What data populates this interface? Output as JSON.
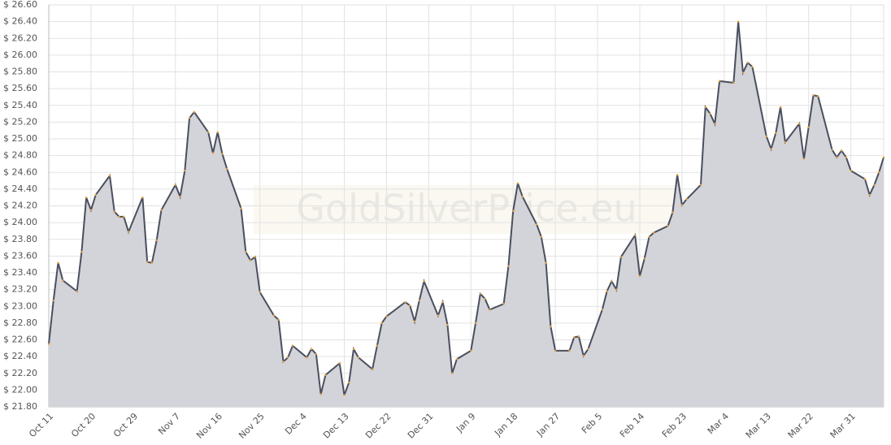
{
  "chart_data": {
    "type": "area",
    "watermark": "GoldSilverPrice.eu",
    "x": [
      "Oct 11",
      "Oct 12",
      "Oct 13",
      "Oct 14",
      "Oct 17",
      "Oct 18",
      "Oct 19",
      "Oct 20",
      "Oct 21",
      "Oct 24",
      "Oct 25",
      "Oct 26",
      "Oct 27",
      "Oct 28",
      "Oct 31",
      "Nov 1",
      "Nov 2",
      "Nov 3",
      "Nov 4",
      "Nov 7",
      "Nov 8",
      "Nov 9",
      "Nov 10",
      "Nov 11",
      "Nov 14",
      "Nov 15",
      "Nov 16",
      "Nov 17",
      "Nov 18",
      "Nov 21",
      "Nov 22",
      "Nov 23",
      "Nov 24",
      "Nov 25",
      "Nov 28",
      "Nov 29",
      "Nov 30",
      "Dec 1",
      "Dec 2",
      "Dec 5",
      "Dec 6",
      "Dec 7",
      "Dec 8",
      "Dec 9",
      "Dec 12",
      "Dec 13",
      "Dec 14",
      "Dec 15",
      "Dec 16",
      "Dec 19",
      "Dec 20",
      "Dec 21",
      "Dec 22",
      "Dec 26",
      "Dec 27",
      "Dec 28",
      "Dec 29",
      "Dec 30",
      "Jan 2",
      "Jan 3",
      "Jan 4",
      "Jan 5",
      "Jan 6",
      "Jan 9",
      "Jan 10",
      "Jan 11",
      "Jan 12",
      "Jan 13",
      "Jan 16",
      "Jan 17",
      "Jan 18",
      "Jan 19",
      "Jan 20",
      "Jan 23",
      "Jan 24",
      "Jan 25",
      "Jan 26",
      "Jan 27",
      "Jan 30",
      "Jan 31",
      "Feb 1",
      "Feb 2",
      "Feb 3",
      "Feb 6",
      "Feb 7",
      "Feb 8",
      "Feb 9",
      "Feb 10",
      "Feb 13",
      "Feb 14",
      "Feb 15",
      "Feb 16",
      "Feb 17",
      "Feb 20",
      "Feb 21",
      "Feb 22",
      "Feb 23",
      "Feb 24",
      "Feb 27",
      "Feb 28",
      "Mar 1",
      "Mar 2",
      "Mar 3",
      "Mar 6",
      "Mar 7",
      "Mar 8",
      "Mar 9",
      "Mar 10",
      "Mar 13",
      "Mar 14",
      "Mar 15",
      "Mar 16",
      "Mar 17",
      "Mar 20",
      "Mar 21",
      "Mar 22",
      "Mar 23",
      "Mar 24",
      "Mar 27",
      "Mar 28",
      "Mar 29",
      "Mar 30",
      "Mar 31",
      "Apr 3",
      "Apr 4",
      "Apr 5",
      "Apr 6",
      "Apr 7"
    ],
    "series": [
      {
        "color": "#4a4f5e",
        "fill": "#d3d4d9",
        "marker_color": "#e8a33c",
        "values": [
          22.55,
          23.07,
          23.52,
          23.31,
          23.18,
          23.65,
          24.3,
          24.15,
          24.33,
          24.56,
          24.13,
          24.07,
          24.07,
          23.89,
          24.3,
          23.53,
          23.52,
          23.79,
          24.15,
          24.45,
          24.31,
          24.62,
          25.25,
          25.32,
          25.08,
          24.83,
          25.08,
          24.82,
          24.64,
          24.17,
          23.65,
          23.55,
          23.59,
          23.17,
          22.89,
          22.84,
          22.34,
          22.39,
          22.53,
          22.39,
          22.49,
          22.43,
          21.95,
          22.18,
          22.32,
          21.94,
          22.09,
          22.49,
          22.39,
          22.25,
          22.53,
          22.8,
          22.88,
          23.05,
          23.01,
          22.82,
          23.07,
          23.3,
          22.89,
          23.05,
          22.78,
          22.2,
          22.37,
          22.47,
          22.8,
          23.15,
          23.09,
          22.96,
          23.03,
          23.48,
          24.14,
          24.47,
          24.31,
          23.98,
          23.83,
          23.52,
          22.76,
          22.47,
          22.47,
          22.63,
          22.64,
          22.41,
          22.49,
          22.96,
          23.18,
          23.3,
          23.2,
          23.59,
          23.85,
          23.36,
          23.57,
          23.83,
          23.88,
          23.96,
          24.12,
          24.57,
          24.21,
          24.28,
          24.45,
          25.38,
          25.3,
          25.18,
          25.69,
          25.67,
          26.4,
          25.79,
          25.91,
          25.86,
          25.03,
          24.88,
          25.07,
          25.38,
          24.96,
          25.18,
          24.76,
          25.14,
          25.52,
          25.51,
          24.87,
          24.78,
          24.86,
          24.78,
          24.62,
          24.52,
          24.33,
          24.45,
          24.6,
          24.78
        ]
      }
    ],
    "xlim": [
      "Oct 11",
      "Apr 7"
    ],
    "xticks": [
      "Oct 11",
      "Oct 20",
      "Oct 29",
      "Nov 7",
      "Nov 16",
      "Nov 25",
      "Dec 4",
      "Dec 13",
      "Dec 22",
      "Dec 31",
      "Jan 9",
      "Jan 18",
      "Jan 27",
      "Feb 5",
      "Feb 14",
      "Feb 23",
      "Mar 4",
      "Mar 13",
      "Mar 22",
      "Mar 31"
    ],
    "ylim": [
      21.8,
      26.6
    ],
    "yticks": [
      {
        "value": 21.8,
        "label": "$ 21.80"
      },
      {
        "value": 22.0,
        "label": "$ 22.00"
      },
      {
        "value": 22.2,
        "label": "$ 22.20"
      },
      {
        "value": 22.4,
        "label": "$ 22.40"
      },
      {
        "value": 22.6,
        "label": "$ 22.60"
      },
      {
        "value": 22.8,
        "label": "$ 22.80"
      },
      {
        "value": 23.0,
        "label": "$ 23.00"
      },
      {
        "value": 23.2,
        "label": "$ 23.20"
      },
      {
        "value": 23.4,
        "label": "$ 23.40"
      },
      {
        "value": 23.6,
        "label": "$ 23.60"
      },
      {
        "value": 23.8,
        "label": "$ 23.80"
      },
      {
        "value": 24.0,
        "label": "$ 24.00"
      },
      {
        "value": 24.2,
        "label": "$ 24.20"
      },
      {
        "value": 24.4,
        "label": "$ 24.40"
      },
      {
        "value": 24.6,
        "label": "$ 24.60"
      },
      {
        "value": 24.8,
        "label": "$ 24.80"
      },
      {
        "value": 25.0,
        "label": "$ 25.00"
      },
      {
        "value": 25.2,
        "label": "$ 25.20"
      },
      {
        "value": 25.4,
        "label": "$ 25.40"
      },
      {
        "value": 25.6,
        "label": "$ 25.60"
      },
      {
        "value": 25.8,
        "label": "$ 25.80"
      },
      {
        "value": 26.0,
        "label": "$ 26.00"
      },
      {
        "value": 26.2,
        "label": "$ 26.20"
      },
      {
        "value": 26.4,
        "label": "$ 26.40"
      },
      {
        "value": 26.6,
        "label": "$ 26.60"
      }
    ],
    "grid": true
  }
}
